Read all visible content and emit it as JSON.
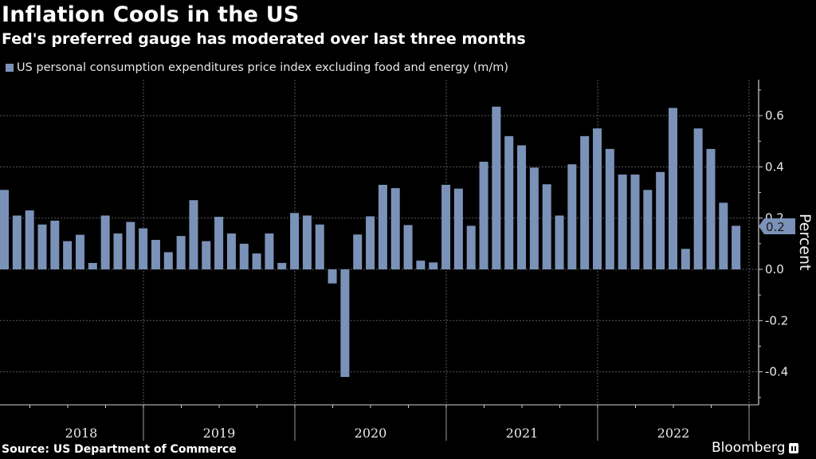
{
  "header": {
    "title": "Inflation Cools in the US",
    "subtitle": "Fed's preferred gauge has moderated over last three months"
  },
  "footer": {
    "source": "Source: US Department of Commerce",
    "brand": "Bloomberg"
  },
  "colors": {
    "background": "#000000",
    "bar": "#7b92b8",
    "grid": "#5a5a5a",
    "axis": "#d0d0d0",
    "text": "#ffffff"
  },
  "chart_data": {
    "type": "bar",
    "title": "Inflation Cools in the US",
    "subtitle": "Fed's preferred gauge has moderated over last three months",
    "legend": [
      "US personal consumption expenditures price index excluding food and energy (m/m)"
    ],
    "legend_position": "top-left",
    "xlabel": "",
    "ylabel": "Percent",
    "ylim": [
      -0.53,
      0.74
    ],
    "yticks": [
      -0.4,
      -0.2,
      0.0,
      0.2,
      0.4,
      0.6
    ],
    "ytick_labels": [
      "-0.4",
      "-0.2",
      "0.0",
      "0.2",
      "0.4",
      "0.6"
    ],
    "y_axis_side": "right",
    "grid": true,
    "x_year_labels": [
      "2018",
      "2019",
      "2020",
      "2021",
      "2022"
    ],
    "last_value_label": "0.2",
    "series": [
      {
        "name": "US personal consumption expenditures price index excluding food and energy (m/m)",
        "values": [
          0.31,
          0.21,
          0.23,
          0.175,
          0.19,
          0.11,
          0.135,
          0.025,
          0.21,
          0.14,
          0.185,
          0.16,
          0.115,
          0.067,
          0.13,
          0.27,
          0.11,
          0.205,
          0.14,
          0.1,
          0.062,
          0.14,
          0.025,
          0.22,
          0.21,
          0.175,
          -0.055,
          -0.42,
          0.136,
          0.207,
          0.33,
          0.317,
          0.173,
          0.034,
          0.027,
          0.33,
          0.315,
          0.17,
          0.42,
          0.635,
          0.52,
          0.484,
          0.397,
          0.332,
          0.21,
          0.41,
          0.52,
          0.55,
          0.47,
          0.37,
          0.37,
          0.31,
          0.38,
          0.63,
          0.08,
          0.55,
          0.47,
          0.26,
          0.17
        ]
      }
    ],
    "source": "Source: US Department of Commerce"
  }
}
